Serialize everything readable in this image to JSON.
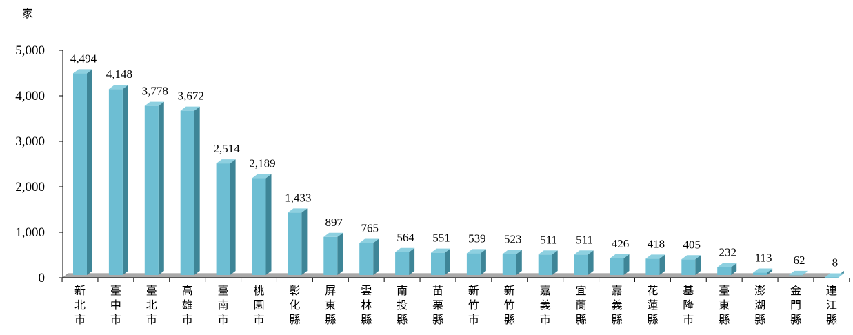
{
  "chart_data": {
    "type": "bar",
    "unit_label": "家",
    "categories": [
      "新北市",
      "臺中市",
      "臺北市",
      "高雄市",
      "臺南市",
      "桃園市",
      "彰化縣",
      "屏東縣",
      "雲林縣",
      "南投縣",
      "苗栗縣",
      "新竹市",
      "新竹縣",
      "嘉義市",
      "宜蘭縣",
      "嘉義縣",
      "花蓮縣",
      "基隆市",
      "臺東縣",
      "澎湖縣",
      "金門縣",
      "連江縣"
    ],
    "values": [
      4494,
      4148,
      3778,
      3672,
      2514,
      2189,
      1433,
      897,
      765,
      564,
      551,
      539,
      523,
      511,
      511,
      426,
      418,
      405,
      232,
      113,
      62,
      8
    ],
    "value_labels": [
      "4,494",
      "4,148",
      "3,778",
      "3,672",
      "2,514",
      "2,189",
      "1,433",
      "897",
      "765",
      "564",
      "551",
      "539",
      "523",
      "511",
      "511",
      "426",
      "418",
      "405",
      "232",
      "113",
      "62",
      "8"
    ],
    "ylim": [
      0,
      5000
    ],
    "yticks": [
      0,
      1000,
      2000,
      3000,
      4000,
      5000
    ],
    "ytick_labels": [
      "0",
      "1,000",
      "2,000",
      "3,000",
      "4,000",
      "5,000"
    ],
    "bar_style": "3d",
    "colors": {
      "bar_front": "#6DBED3",
      "bar_side": "#3E8597",
      "bar_top": "#8DD0E0",
      "floor": "#A9A9A9",
      "axis": "#000000"
    },
    "grid": false,
    "legend": "none"
  }
}
